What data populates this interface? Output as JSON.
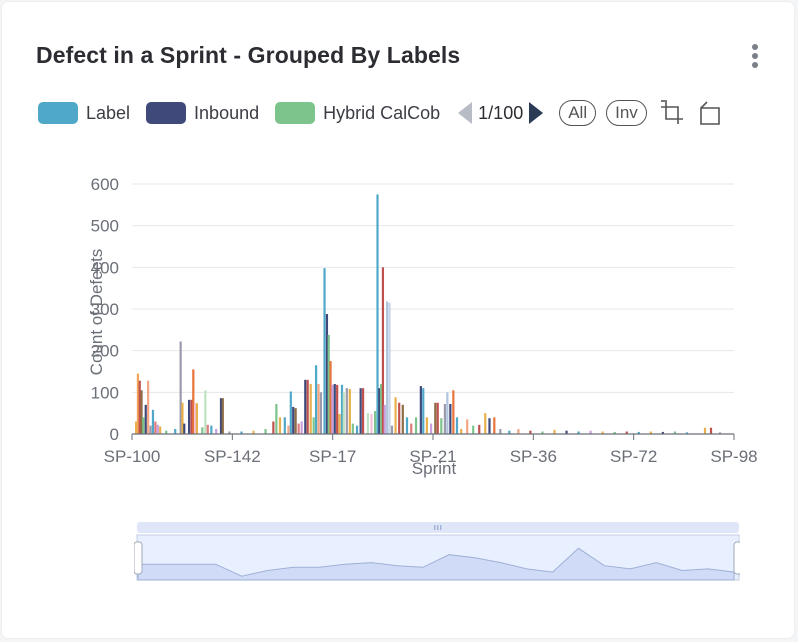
{
  "header": {
    "title": "Defect in a Sprint  -  Grouped By Labels"
  },
  "legend": {
    "items": [
      {
        "label": "Label",
        "color": "#4fa8c8"
      },
      {
        "label": "Inbound",
        "color": "#3f4a7a"
      },
      {
        "label": "Hybrid CalCob",
        "color": "#7cc48c"
      }
    ],
    "pager": "1/100",
    "buttons": {
      "all": "All",
      "inv": "Inv"
    }
  },
  "icons": {
    "menu": "kebab-icon",
    "zoom": "zoom-area-icon",
    "reset": "zoom-reset-icon"
  },
  "chart_data": {
    "type": "bar",
    "xlabel": "Sprint",
    "ylabel": "Count of Defects",
    "ylim": [
      0,
      600
    ],
    "yticks": [
      0,
      100,
      200,
      300,
      400,
      500,
      600
    ],
    "xtick_labels": [
      "SP-100",
      "SP-142",
      "SP-17",
      "SP-21",
      "SP-36",
      "SP-72",
      "SP-98"
    ],
    "grid": true,
    "legend_position": "top-left",
    "visible_series_colors": [
      "#4fa8c8",
      "#3f4a7a",
      "#7cc48c"
    ],
    "visible_peaks": [
      {
        "near": "SP-21",
        "value": 575,
        "color": "#4fa8c8"
      },
      {
        "near": "SP-21",
        "value": 400,
        "color": "#c0504d"
      },
      {
        "near": "SP-17",
        "value": 398,
        "color": "#4fa8c8"
      },
      {
        "near": "SP-17",
        "value": 288,
        "color": "#3f4a7a"
      },
      {
        "near": "SP-21",
        "value": 318,
        "color": "#b0c4de"
      },
      {
        "near": "SP-100",
        "value": 222,
        "color": "#9a9aac"
      }
    ],
    "bars_description": "many thin multicolored bars across 100+ sprint categories",
    "values": [
      {
        "x": 0.005,
        "v": 30,
        "c": "#e8b04a"
      },
      {
        "x": 0.008,
        "v": 145,
        "c": "#f2a65a"
      },
      {
        "x": 0.011,
        "v": 128,
        "c": "#c0504d"
      },
      {
        "x": 0.014,
        "v": 105,
        "c": "#8c6d46"
      },
      {
        "x": 0.017,
        "v": 40,
        "c": "#7cc48c"
      },
      {
        "x": 0.021,
        "v": 70,
        "c": "#3f4a7a"
      },
      {
        "x": 0.025,
        "v": 128,
        "c": "#f4a582"
      },
      {
        "x": 0.029,
        "v": 20,
        "c": "#9a9aac"
      },
      {
        "x": 0.033,
        "v": 58,
        "c": "#4fa8c8"
      },
      {
        "x": 0.037,
        "v": 30,
        "c": "#e07b7b"
      },
      {
        "x": 0.041,
        "v": 22,
        "c": "#c9a0dc"
      },
      {
        "x": 0.045,
        "v": 18,
        "c": "#e8b04a"
      },
      {
        "x": 0.055,
        "v": 8,
        "c": "#7cc48c"
      },
      {
        "x": 0.07,
        "v": 12,
        "c": "#4fa8c8"
      },
      {
        "x": 0.079,
        "v": 222,
        "c": "#9a9aac"
      },
      {
        "x": 0.082,
        "v": 75,
        "c": "#e8b04a"
      },
      {
        "x": 0.085,
        "v": 25,
        "c": "#3f4a7a"
      },
      {
        "x": 0.093,
        "v": 82,
        "c": "#3f4a7a"
      },
      {
        "x": 0.097,
        "v": 82,
        "c": "#c0504d"
      },
      {
        "x": 0.1,
        "v": 155,
        "c": "#e8743b"
      },
      {
        "x": 0.103,
        "v": 74,
        "c": "#f4c2d8"
      },
      {
        "x": 0.106,
        "v": 74,
        "c": "#e8b04a"
      },
      {
        "x": 0.115,
        "v": 16,
        "c": "#7cc48c"
      },
      {
        "x": 0.12,
        "v": 105,
        "c": "#bfe3c0"
      },
      {
        "x": 0.124,
        "v": 22,
        "c": "#e07b7b"
      },
      {
        "x": 0.13,
        "v": 20,
        "c": "#4fa8c8"
      },
      {
        "x": 0.138,
        "v": 12,
        "c": "#c9a0dc"
      },
      {
        "x": 0.146,
        "v": 86,
        "c": "#3f4a7a"
      },
      {
        "x": 0.149,
        "v": 86,
        "c": "#8c6d46"
      },
      {
        "x": 0.16,
        "v": 6,
        "c": "#9a9aac"
      },
      {
        "x": 0.18,
        "v": 6,
        "c": "#4fa8c8"
      },
      {
        "x": 0.2,
        "v": 8,
        "c": "#e8b04a"
      },
      {
        "x": 0.22,
        "v": 12,
        "c": "#7cc48c"
      },
      {
        "x": 0.233,
        "v": 30,
        "c": "#c0504d"
      },
      {
        "x": 0.238,
        "v": 72,
        "c": "#7cc48c"
      },
      {
        "x": 0.244,
        "v": 40,
        "c": "#e8b04a"
      },
      {
        "x": 0.252,
        "v": 40,
        "c": "#4fa8c8"
      },
      {
        "x": 0.258,
        "v": 20,
        "c": "#f4a582"
      },
      {
        "x": 0.262,
        "v": 102,
        "c": "#4fa8c8"
      },
      {
        "x": 0.266,
        "v": 65,
        "c": "#3f4a7a"
      },
      {
        "x": 0.27,
        "v": 62,
        "c": "#8c6d46"
      },
      {
        "x": 0.275,
        "v": 25,
        "c": "#e07b7b"
      },
      {
        "x": 0.28,
        "v": 30,
        "c": "#c9a0dc"
      },
      {
        "x": 0.286,
        "v": 130,
        "c": "#3f4a7a"
      },
      {
        "x": 0.29,
        "v": 130,
        "c": "#c0504d"
      },
      {
        "x": 0.295,
        "v": 120,
        "c": "#e8b04a"
      },
      {
        "x": 0.3,
        "v": 40,
        "c": "#7cc48c"
      },
      {
        "x": 0.304,
        "v": 165,
        "c": "#4fa8c8"
      },
      {
        "x": 0.308,
        "v": 120,
        "c": "#f4a582"
      },
      {
        "x": 0.312,
        "v": 100,
        "c": "#9a9aac"
      },
      {
        "x": 0.318,
        "v": 398,
        "c": "#4fa8c8"
      },
      {
        "x": 0.322,
        "v": 288,
        "c": "#3f4a7a"
      },
      {
        "x": 0.325,
        "v": 238,
        "c": "#7cc48c"
      },
      {
        "x": 0.328,
        "v": 175,
        "c": "#e8743b"
      },
      {
        "x": 0.331,
        "v": 118,
        "c": "#c9a0dc"
      },
      {
        "x": 0.335,
        "v": 120,
        "c": "#3f4a7a"
      },
      {
        "x": 0.339,
        "v": 118,
        "c": "#c0504d"
      },
      {
        "x": 0.343,
        "v": 48,
        "c": "#e8b04a"
      },
      {
        "x": 0.347,
        "v": 118,
        "c": "#4fa8c8"
      },
      {
        "x": 0.35,
        "v": 100,
        "c": "#bfe3c0"
      },
      {
        "x": 0.355,
        "v": 110,
        "c": "#9a9aac"
      },
      {
        "x": 0.36,
        "v": 108,
        "c": "#e8b04a"
      },
      {
        "x": 0.365,
        "v": 25,
        "c": "#7cc48c"
      },
      {
        "x": 0.372,
        "v": 20,
        "c": "#4fa8c8"
      },
      {
        "x": 0.378,
        "v": 110,
        "c": "#3f4a7a"
      },
      {
        "x": 0.382,
        "v": 110,
        "c": "#c0504d"
      },
      {
        "x": 0.39,
        "v": 50,
        "c": "#bfe3c0"
      },
      {
        "x": 0.396,
        "v": 48,
        "c": "#f4c2d8"
      },
      {
        "x": 0.402,
        "v": 55,
        "c": "#7cc48c"
      },
      {
        "x": 0.406,
        "v": 575,
        "c": "#4fa8c8"
      },
      {
        "x": 0.409,
        "v": 110,
        "c": "#3f4a7a"
      },
      {
        "x": 0.412,
        "v": 120,
        "c": "#7cc48c"
      },
      {
        "x": 0.415,
        "v": 400,
        "c": "#c0504d"
      },
      {
        "x": 0.418,
        "v": 70,
        "c": "#c9a0dc"
      },
      {
        "x": 0.422,
        "v": 318,
        "c": "#b0c4de"
      },
      {
        "x": 0.426,
        "v": 315,
        "c": "#c9d6e8"
      },
      {
        "x": 0.43,
        "v": 20,
        "c": "#9a9aac"
      },
      {
        "x": 0.436,
        "v": 88,
        "c": "#e8b04a"
      },
      {
        "x": 0.442,
        "v": 75,
        "c": "#c0504d"
      },
      {
        "x": 0.448,
        "v": 70,
        "c": "#8c6d46"
      },
      {
        "x": 0.455,
        "v": 40,
        "c": "#4fa8c8"
      },
      {
        "x": 0.462,
        "v": 25,
        "c": "#e07b7b"
      },
      {
        "x": 0.47,
        "v": 40,
        "c": "#7cc48c"
      },
      {
        "x": 0.478,
        "v": 115,
        "c": "#3f4a7a"
      },
      {
        "x": 0.482,
        "v": 110,
        "c": "#4fa8c8"
      },
      {
        "x": 0.488,
        "v": 40,
        "c": "#e8b04a"
      },
      {
        "x": 0.495,
        "v": 25,
        "c": "#c9a0dc"
      },
      {
        "x": 0.502,
        "v": 75,
        "c": "#8c6d46"
      },
      {
        "x": 0.506,
        "v": 75,
        "c": "#c0504d"
      },
      {
        "x": 0.512,
        "v": 38,
        "c": "#7cc48c"
      },
      {
        "x": 0.518,
        "v": 72,
        "c": "#9a9aac"
      },
      {
        "x": 0.522,
        "v": 100,
        "c": "#b0c4de"
      },
      {
        "x": 0.527,
        "v": 72,
        "c": "#3f4a7a"
      },
      {
        "x": 0.532,
        "v": 105,
        "c": "#e8743b"
      },
      {
        "x": 0.538,
        "v": 40,
        "c": "#4fa8c8"
      },
      {
        "x": 0.545,
        "v": 12,
        "c": "#e8b04a"
      },
      {
        "x": 0.555,
        "v": 35,
        "c": "#f4a582"
      },
      {
        "x": 0.565,
        "v": 20,
        "c": "#7cc48c"
      },
      {
        "x": 0.575,
        "v": 22,
        "c": "#c0504d"
      },
      {
        "x": 0.585,
        "v": 50,
        "c": "#e8b04a"
      },
      {
        "x": 0.592,
        "v": 38,
        "c": "#3f4a7a"
      },
      {
        "x": 0.6,
        "v": 40,
        "c": "#e8743b"
      },
      {
        "x": 0.61,
        "v": 12,
        "c": "#9a9aac"
      },
      {
        "x": 0.625,
        "v": 8,
        "c": "#4fa8c8"
      },
      {
        "x": 0.64,
        "v": 12,
        "c": "#f4a582"
      },
      {
        "x": 0.66,
        "v": 8,
        "c": "#c0504d"
      },
      {
        "x": 0.68,
        "v": 6,
        "c": "#7cc48c"
      },
      {
        "x": 0.7,
        "v": 10,
        "c": "#e8b04a"
      },
      {
        "x": 0.72,
        "v": 8,
        "c": "#3f4a7a"
      },
      {
        "x": 0.74,
        "v": 6,
        "c": "#4fa8c8"
      },
      {
        "x": 0.76,
        "v": 8,
        "c": "#c9a0dc"
      },
      {
        "x": 0.78,
        "v": 6,
        "c": "#e8b04a"
      },
      {
        "x": 0.8,
        "v": 5,
        "c": "#7cc48c"
      },
      {
        "x": 0.82,
        "v": 6,
        "c": "#c0504d"
      },
      {
        "x": 0.84,
        "v": 5,
        "c": "#4fa8c8"
      },
      {
        "x": 0.86,
        "v": 6,
        "c": "#e8b04a"
      },
      {
        "x": 0.88,
        "v": 5,
        "c": "#3f4a7a"
      },
      {
        "x": 0.9,
        "v": 6,
        "c": "#7cc48c"
      },
      {
        "x": 0.92,
        "v": 4,
        "c": "#4fa8c8"
      },
      {
        "x": 0.95,
        "v": 15,
        "c": "#e8b04a"
      },
      {
        "x": 0.96,
        "v": 15,
        "c": "#c0504d"
      },
      {
        "x": 0.975,
        "v": 4,
        "c": "#9a9aac"
      }
    ]
  },
  "datazoom": {
    "handle_icon": "grip-icon",
    "overview": [
      0.5,
      0.5,
      0.5,
      0.5,
      0.12,
      0.3,
      0.4,
      0.4,
      0.5,
      0.55,
      0.45,
      0.4,
      0.8,
      0.7,
      0.55,
      0.35,
      0.25,
      1.0,
      0.45,
      0.35,
      0.55,
      0.3,
      0.35,
      0.25
    ]
  }
}
